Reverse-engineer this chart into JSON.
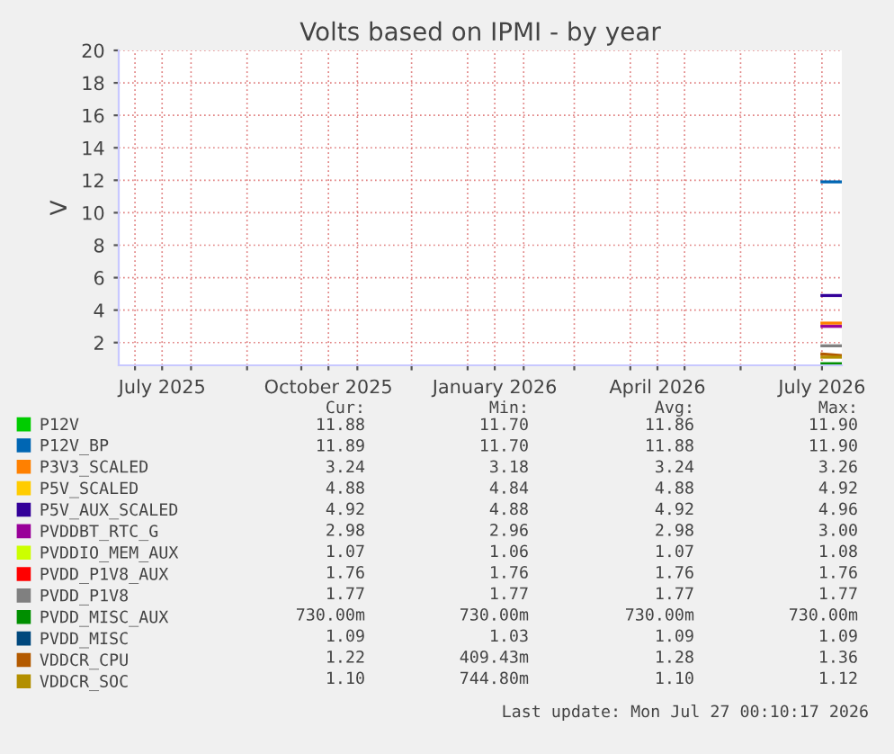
{
  "chart_data": {
    "type": "line",
    "title": "Volts based on IPMI - by year",
    "ylabel": "V",
    "xlim": [
      "2025-06-22",
      "2026-07-27"
    ],
    "ylim": [
      0.6,
      20
    ],
    "xticks": [
      {
        "value": "2025-07-01",
        "label": null
      },
      {
        "value": "2025-07-16",
        "label": "July 2025"
      },
      {
        "value": "2025-08-01",
        "label": null
      },
      {
        "value": "2025-09-01",
        "label": null
      },
      {
        "value": "2025-10-01",
        "label": null
      },
      {
        "value": "2025-10-16",
        "label": "October 2025"
      },
      {
        "value": "2025-11-01",
        "label": null
      },
      {
        "value": "2025-12-01",
        "label": null
      },
      {
        "value": "2026-01-01",
        "label": null
      },
      {
        "value": "2026-01-16",
        "label": "January 2026"
      },
      {
        "value": "2026-02-01",
        "label": null
      },
      {
        "value": "2026-03-01",
        "label": null
      },
      {
        "value": "2026-04-01",
        "label": null
      },
      {
        "value": "2026-04-16",
        "label": "April 2026"
      },
      {
        "value": "2026-05-01",
        "label": null
      },
      {
        "value": "2026-06-01",
        "label": null
      },
      {
        "value": "2026-07-01",
        "label": null
      },
      {
        "value": "2026-07-16",
        "label": "July 2026"
      }
    ],
    "yticks": [
      2,
      4,
      6,
      8,
      10,
      12,
      14,
      16,
      18,
      20
    ],
    "grid": true,
    "legend": "bottom",
    "line_style": "solid",
    "marker": "none",
    "x": [
      "2026-07-16",
      "2026-07-27"
    ],
    "series": [
      {
        "name": "P12V",
        "color": "#00cc00",
        "values": [
          null,
          null
        ]
      },
      {
        "name": "P12V_BP",
        "color": "#0066b3",
        "values": [
          11.9,
          11.9
        ]
      },
      {
        "name": "P3V3_SCALED",
        "color": "#ff8000",
        "values": [
          3.2,
          3.2
        ]
      },
      {
        "name": "P5V_SCALED",
        "color": "#ffcc00",
        "values": [
          null,
          null
        ]
      },
      {
        "name": "P5V_AUX_SCALED",
        "color": "#330099",
        "values": [
          4.9,
          4.9
        ]
      },
      {
        "name": "PVDDBT_RTC_G",
        "color": "#990099",
        "values": [
          3.0,
          3.0
        ]
      },
      {
        "name": "PVDDIO_MEM_AUX",
        "color": "#ccff00",
        "values": [
          null,
          null
        ]
      },
      {
        "name": "PVDD_P1V8_AUX",
        "color": "#ff0000",
        "values": [
          null,
          null
        ]
      },
      {
        "name": "PVDD_P1V8",
        "color": "#808080",
        "values": [
          1.8,
          1.8
        ]
      },
      {
        "name": "PVDD_MISC_AUX",
        "color": "#008f00",
        "values": [
          0.7,
          0.7
        ]
      },
      {
        "name": "PVDD_MISC",
        "color": "#00487d",
        "values": [
          null,
          null
        ]
      },
      {
        "name": "VDDCR_CPU",
        "color": "#b35a00",
        "values": [
          1.3,
          1.2
        ]
      },
      {
        "name": "VDDCR_SOC",
        "color": "#b38f00",
        "values": [
          1.1,
          1.1
        ]
      }
    ],
    "annotations": [
      "Cur:",
      "Min:",
      "Avg:",
      "Max:",
      "11.88",
      "11.70",
      "11.86",
      "11.90",
      "11.89",
      "11.70",
      "11.88",
      "11.90",
      "3.24",
      "3.18",
      "3.24",
      "3.26",
      "4.88",
      "4.84",
      "4.88",
      "4.92",
      "4.92",
      "4.88",
      "4.92",
      "4.96",
      "2.98",
      "2.96",
      "2.98",
      "3.00",
      "1.07",
      "1.06",
      "1.07",
      "1.08",
      "1.76",
      "1.76",
      "1.76",
      "1.76",
      "1.77",
      "1.77",
      "1.77",
      "1.77",
      "730.00m",
      "730.00m",
      "730.00m",
      "730.00m",
      "1.09",
      "1.03",
      "1.09",
      "1.09",
      "1.22",
      "409.43m",
      "1.28",
      "1.36",
      "1.10",
      "744.80m",
      "1.10",
      "1.12",
      "Last update: Mon Jul 27 00:10:17 2026"
    ]
  }
}
